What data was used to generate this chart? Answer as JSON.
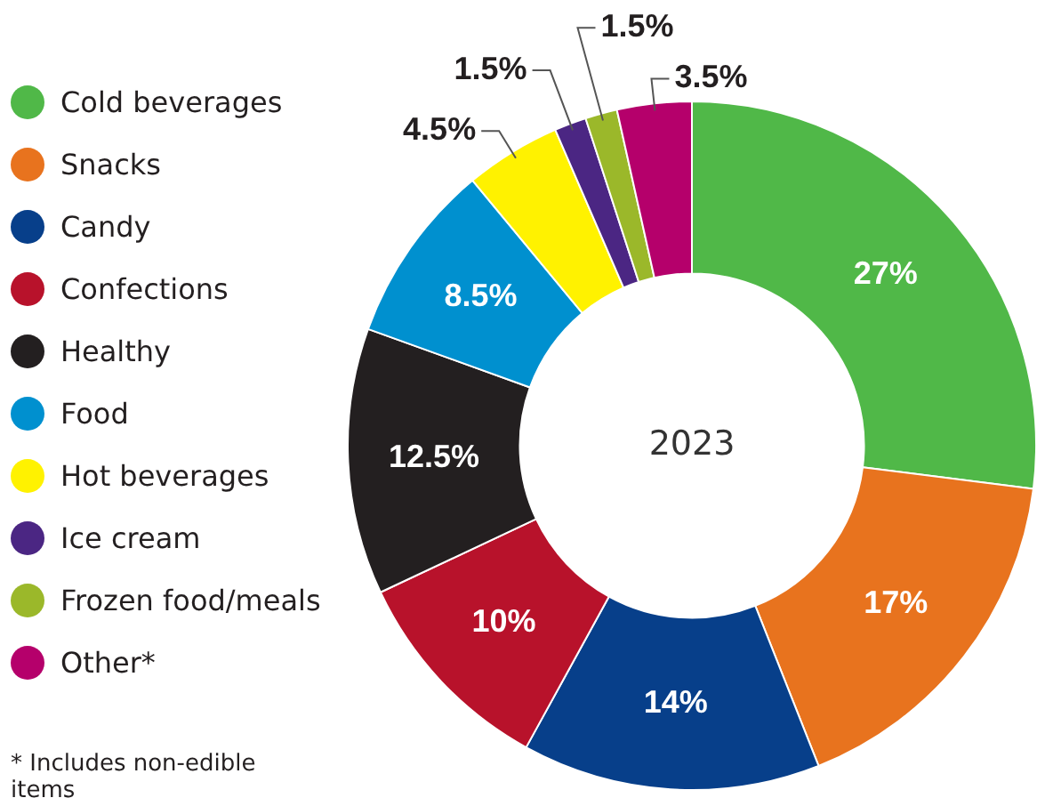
{
  "chart_data": {
    "type": "donut",
    "categories": [
      "Cold beverages",
      "Snacks",
      "Candy",
      "Confections",
      "Healthy",
      "Food",
      "Hot beverages",
      "Ice cream",
      "Frozen food/meals",
      "Other*"
    ],
    "values": [
      27,
      17,
      14,
      10,
      12.5,
      8.5,
      4.5,
      1.5,
      1.5,
      3.5
    ],
    "value_labels": [
      "27%",
      "17%",
      "14%",
      "10%",
      "12.5%",
      "8.5%",
      "4.5%",
      "1.5%",
      "1.5%",
      "3.5%"
    ],
    "colors": [
      "#50b848",
      "#e8731e",
      "#073f8a",
      "#b8122b",
      "#231f20",
      "#0090cf",
      "#fff200",
      "#4b2683",
      "#9bb82a",
      "#b5006b"
    ],
    "legend": "left",
    "annotations": [
      "2023",
      "* Includes non-edible items"
    ]
  }
}
